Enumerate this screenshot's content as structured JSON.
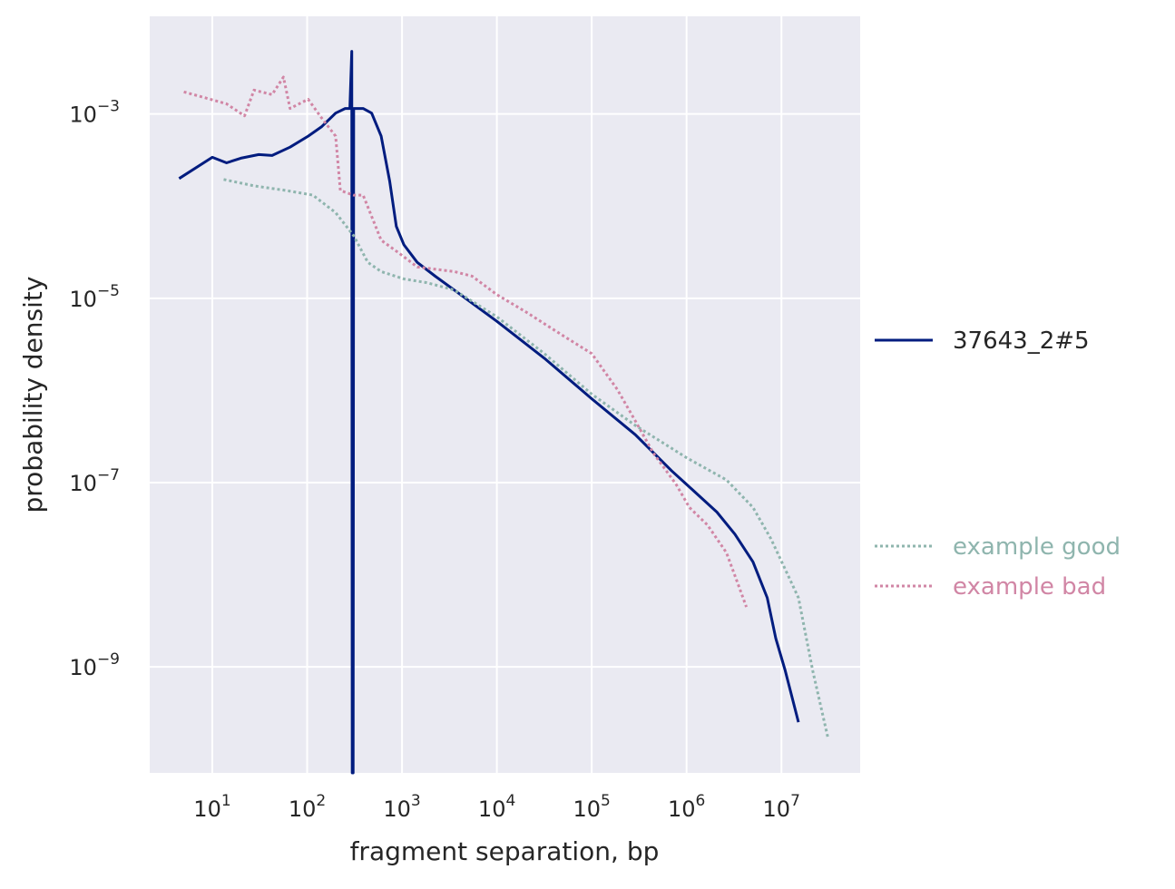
{
  "chart_data": {
    "type": "line",
    "title": "",
    "xlabel": "fragment separation, bp",
    "ylabel": "probability density",
    "x_scale": "log",
    "y_scale": "log",
    "point_format": "[log10(x), log10(y)]",
    "xlim_log10": [
      0.34,
      7.83
    ],
    "ylim_log10": [
      -10.15,
      -1.94
    ],
    "grid": true,
    "x_ticks": [
      {
        "base": "10",
        "exp": "1",
        "v": 1
      },
      {
        "base": "10",
        "exp": "2",
        "v": 2
      },
      {
        "base": "10",
        "exp": "3",
        "v": 3
      },
      {
        "base": "10",
        "exp": "4",
        "v": 4
      },
      {
        "base": "10",
        "exp": "5",
        "v": 5
      },
      {
        "base": "10",
        "exp": "6",
        "v": 6
      },
      {
        "base": "10",
        "exp": "7",
        "v": 7
      }
    ],
    "y_ticks": [
      {
        "base": "10",
        "exp": "−3",
        "v": -3
      },
      {
        "base": "10",
        "exp": "−5",
        "v": -5
      },
      {
        "base": "10",
        "exp": "−7",
        "v": -7
      },
      {
        "base": "10",
        "exp": "−9",
        "v": -9
      }
    ],
    "legend_position": "right",
    "series": [
      {
        "name": "37643_2#5",
        "color": "#001c7f",
        "style": "solid",
        "points": [
          [
            0.65,
            -3.7
          ],
          [
            1.0,
            -3.47
          ],
          [
            1.15,
            -3.53
          ],
          [
            1.3,
            -3.48
          ],
          [
            1.49,
            -3.44
          ],
          [
            1.63,
            -3.45
          ],
          [
            1.82,
            -3.36
          ],
          [
            2.01,
            -3.24
          ],
          [
            2.15,
            -3.14
          ],
          [
            2.3,
            -2.99
          ],
          [
            2.4,
            -2.94
          ],
          [
            2.45,
            -2.94
          ],
          [
            2.47,
            -2.32
          ],
          [
            2.475,
            -10.15
          ],
          [
            2.485,
            -10.15
          ],
          [
            2.49,
            -2.94
          ],
          [
            2.59,
            -2.94
          ],
          [
            2.68,
            -2.99
          ],
          [
            2.78,
            -3.24
          ],
          [
            2.87,
            -3.73
          ],
          [
            2.94,
            -4.22
          ],
          [
            3.02,
            -4.42
          ],
          [
            3.16,
            -4.61
          ],
          [
            3.35,
            -4.76
          ],
          [
            3.55,
            -4.91
          ],
          [
            4.0,
            -5.25
          ],
          [
            4.5,
            -5.65
          ],
          [
            5.0,
            -6.09
          ],
          [
            5.46,
            -6.48
          ],
          [
            5.84,
            -6.87
          ],
          [
            6.0,
            -7.02
          ],
          [
            6.32,
            -7.32
          ],
          [
            6.51,
            -7.56
          ],
          [
            6.7,
            -7.86
          ],
          [
            6.85,
            -8.25
          ],
          [
            6.94,
            -8.69
          ],
          [
            7.04,
            -9.04
          ],
          [
            7.18,
            -9.6
          ]
        ]
      },
      {
        "name": "example good",
        "color": "#8fb5ae",
        "style": "dotted",
        "points": [
          [
            1.12,
            -3.71
          ],
          [
            1.44,
            -3.78
          ],
          [
            1.78,
            -3.83
          ],
          [
            2.06,
            -3.88
          ],
          [
            2.3,
            -4.07
          ],
          [
            2.49,
            -4.32
          ],
          [
            2.64,
            -4.61
          ],
          [
            2.78,
            -4.71
          ],
          [
            3.02,
            -4.79
          ],
          [
            3.26,
            -4.83
          ],
          [
            3.55,
            -4.91
          ],
          [
            4.0,
            -5.2
          ],
          [
            4.5,
            -5.6
          ],
          [
            5.0,
            -6.04
          ],
          [
            5.46,
            -6.38
          ],
          [
            6.0,
            -6.73
          ],
          [
            6.42,
            -6.97
          ],
          [
            6.7,
            -7.27
          ],
          [
            6.89,
            -7.61
          ],
          [
            7.09,
            -8.05
          ],
          [
            7.18,
            -8.25
          ],
          [
            7.33,
            -9.04
          ],
          [
            7.49,
            -9.77
          ]
        ]
      },
      {
        "name": "example bad",
        "color": "#d186a5",
        "style": "dotted",
        "points": [
          [
            0.7,
            -2.76
          ],
          [
            0.91,
            -2.82
          ],
          [
            1.15,
            -2.89
          ],
          [
            1.34,
            -3.02
          ],
          [
            1.44,
            -2.74
          ],
          [
            1.63,
            -2.79
          ],
          [
            1.75,
            -2.6
          ],
          [
            1.82,
            -2.94
          ],
          [
            2.01,
            -2.84
          ],
          [
            2.15,
            -3.04
          ],
          [
            2.3,
            -3.24
          ],
          [
            2.35,
            -3.83
          ],
          [
            2.49,
            -3.88
          ],
          [
            2.59,
            -3.88
          ],
          [
            2.78,
            -4.37
          ],
          [
            2.97,
            -4.51
          ],
          [
            3.16,
            -4.66
          ],
          [
            3.55,
            -4.71
          ],
          [
            3.74,
            -4.76
          ],
          [
            4.0,
            -4.96
          ],
          [
            4.31,
            -5.15
          ],
          [
            4.69,
            -5.4
          ],
          [
            5.0,
            -5.6
          ],
          [
            5.27,
            -5.99
          ],
          [
            5.46,
            -6.33
          ],
          [
            5.65,
            -6.68
          ],
          [
            5.89,
            -7.02
          ],
          [
            6.03,
            -7.27
          ],
          [
            6.22,
            -7.46
          ],
          [
            6.42,
            -7.76
          ],
          [
            6.56,
            -8.15
          ],
          [
            6.63,
            -8.35
          ]
        ]
      }
    ]
  }
}
